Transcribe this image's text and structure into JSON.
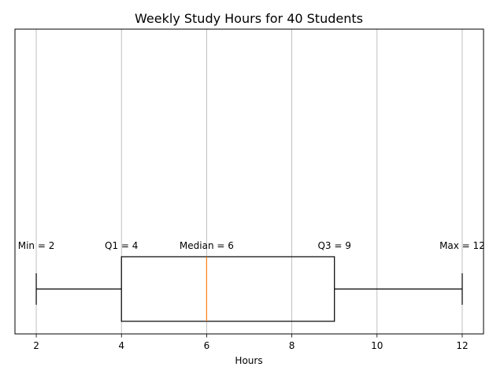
{
  "chart_data": {
    "type": "box",
    "title": "Weekly Study Hours for 40 Students",
    "xlabel": "Hours",
    "ylabel": "",
    "xlim": [
      1.5,
      12.5
    ],
    "xticks": [
      2,
      4,
      6,
      8,
      10,
      12
    ],
    "xtick_labels": [
      "2",
      "4",
      "6",
      "8",
      "10",
      "12"
    ],
    "grid": "x-axis",
    "orientation": "horizontal",
    "box": {
      "min": 2,
      "q1": 4,
      "median": 6,
      "q3": 9,
      "max": 12
    },
    "annotations": [
      {
        "name": "min",
        "text": "Min = 2",
        "x": 2
      },
      {
        "name": "q1",
        "text": "Q1 = 4",
        "x": 4
      },
      {
        "name": "median",
        "text": "Median = 6",
        "x": 6
      },
      {
        "name": "q3",
        "text": "Q3 = 9",
        "x": 9
      },
      {
        "name": "max",
        "text": "Max = 12",
        "x": 12
      }
    ],
    "colors": {
      "box": "#000000",
      "median": "#ff7f0e",
      "grid": "#b0b0b0"
    }
  }
}
